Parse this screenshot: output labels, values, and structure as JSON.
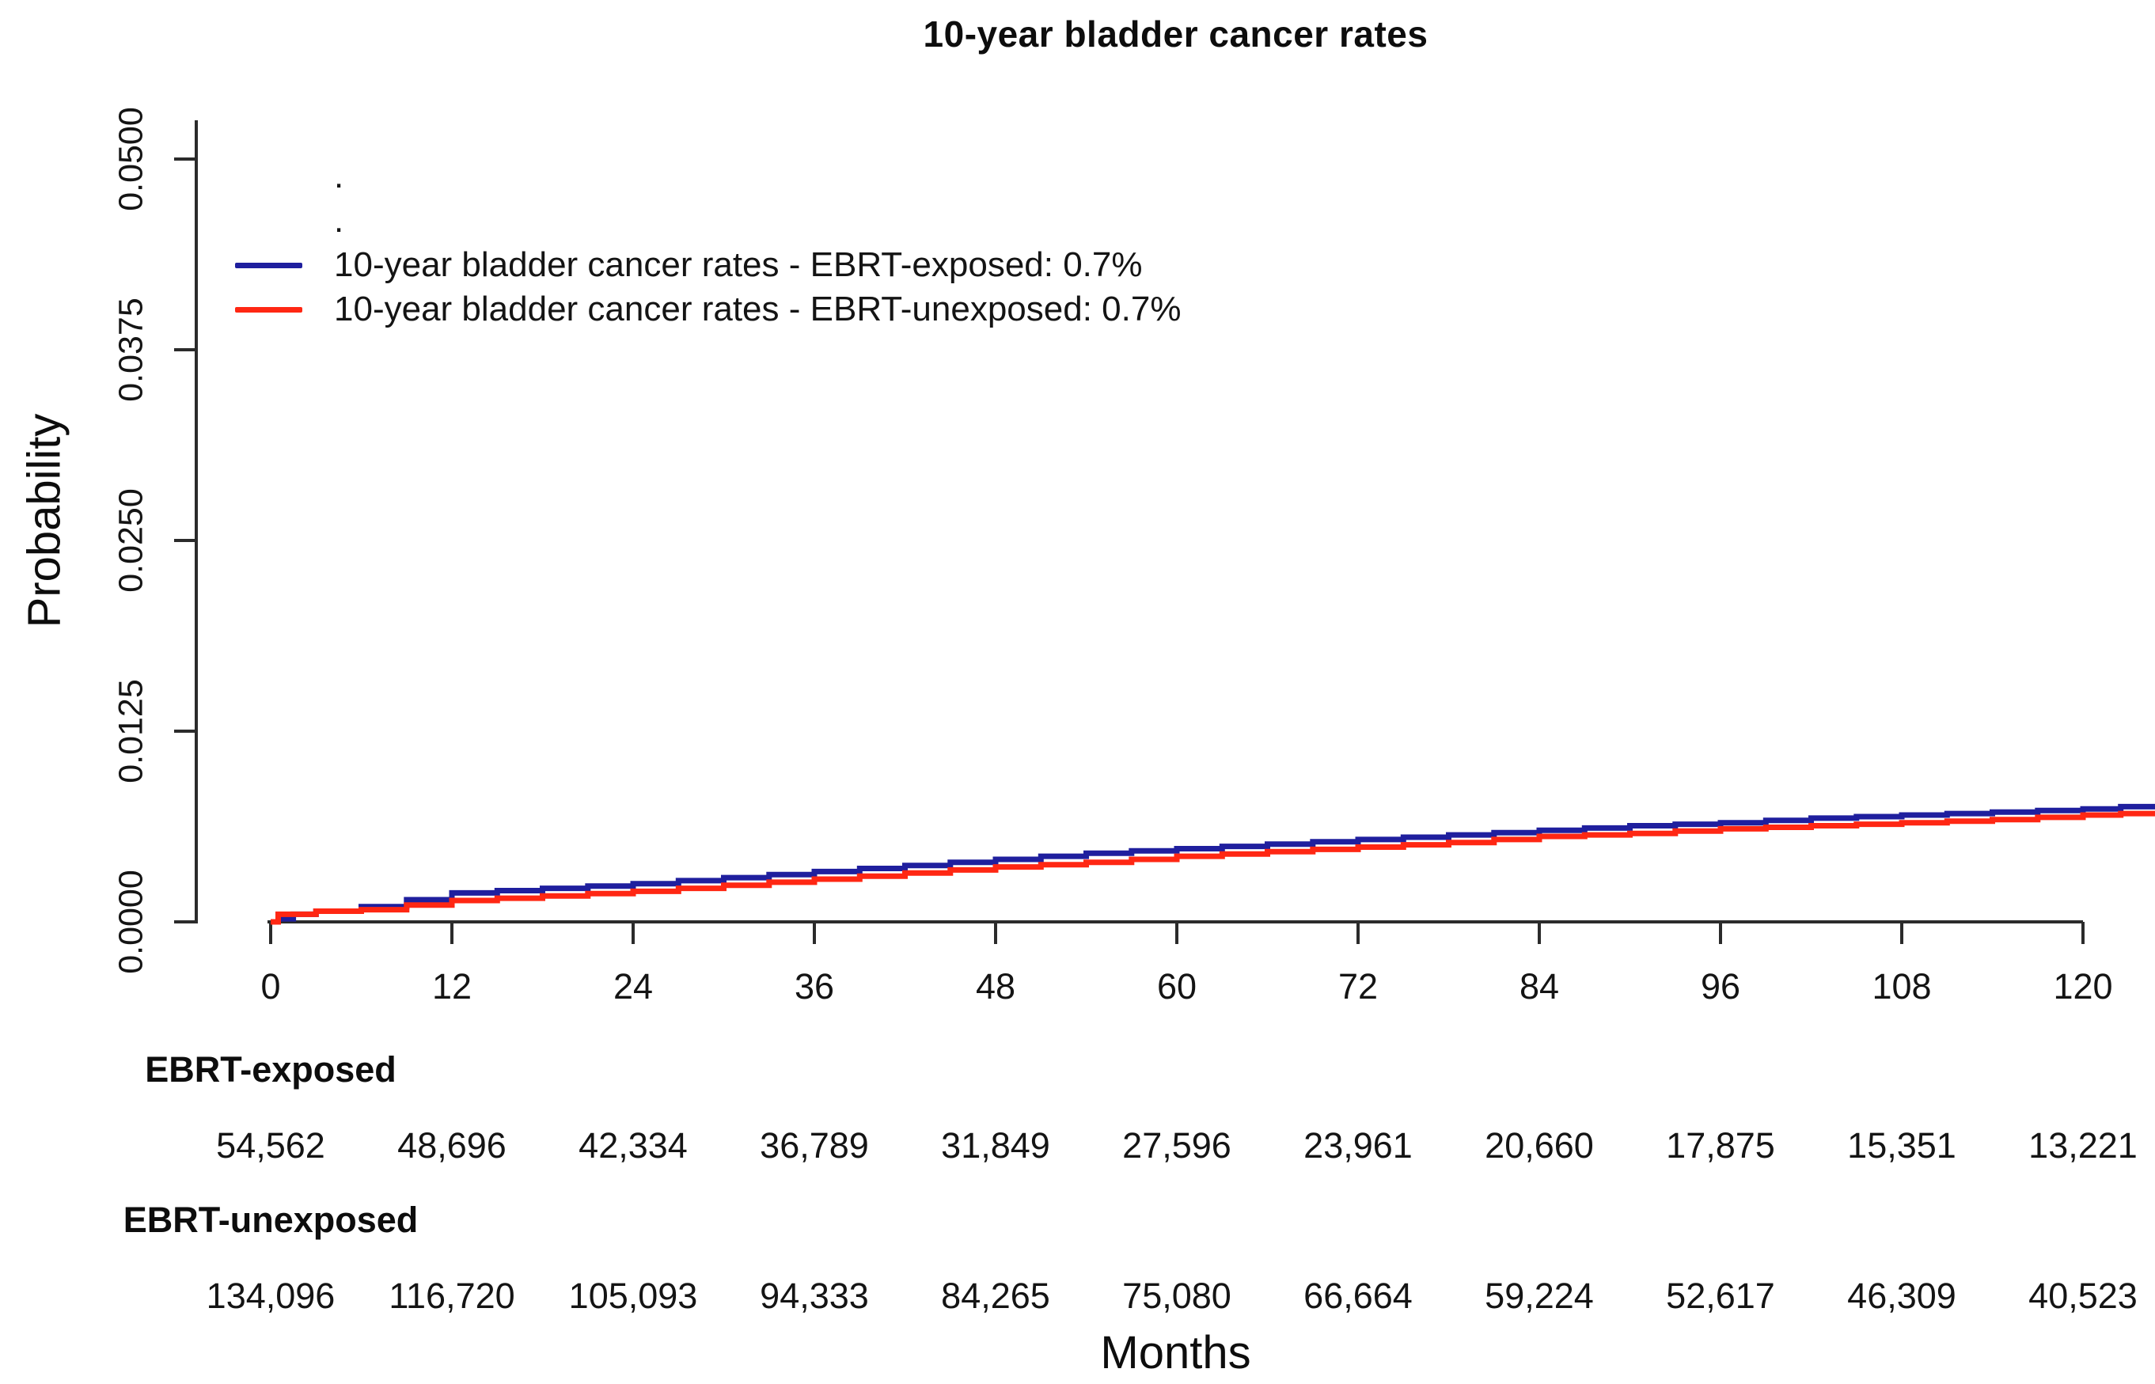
{
  "title": "10-year bladder cancer rates",
  "axes": {
    "y_label": "Probability",
    "x_label": "Months",
    "y_tick_labels": [
      "0.0000",
      "0.0125",
      "0.0250",
      "0.0375",
      "0.0500"
    ],
    "x_tick_labels": [
      "0",
      "12",
      "24",
      "36",
      "48",
      "60",
      "72",
      "84",
      "96",
      "108",
      "120"
    ]
  },
  "legend": {
    "entries": [
      {
        "label": ".",
        "color": null
      },
      {
        "label": ".",
        "color": null
      },
      {
        "label": "10-year bladder cancer rates - EBRT-exposed: 0.7%",
        "color": "#1f1f9e"
      },
      {
        "label": "10-year bladder cancer rates - EBRT-unexposed: 0.7%",
        "color": "#ff2713"
      }
    ]
  },
  "risk_table": {
    "rows": [
      {
        "label": "EBRT-exposed",
        "values": [
          "54,562",
          "48,696",
          "42,334",
          "36,789",
          "31,849",
          "27,596",
          "23,961",
          "20,660",
          "17,875",
          "15,351",
          "13,221"
        ]
      },
      {
        "label": "EBRT-unexposed",
        "values": [
          "134,096",
          "116,720",
          "105,093",
          "94,333",
          "84,265",
          "75,080",
          "66,664",
          "59,224",
          "52,617",
          "46,309",
          "40,523"
        ]
      }
    ]
  },
  "chart_data": {
    "type": "line",
    "title": "10-year bladder cancer rates",
    "xlabel": "Months",
    "ylabel": "Probability",
    "xlim": [
      0,
      125
    ],
    "ylim": [
      0,
      0.05
    ],
    "x_tick_values": [
      0,
      12,
      24,
      36,
      48,
      60,
      72,
      84,
      96,
      108,
      120
    ],
    "y_tick_values": [
      0,
      0.0125,
      0.025,
      0.0375,
      0.05
    ],
    "grid": false,
    "curve_style": "step-after",
    "legend_position": "top-left",
    "series": [
      {
        "name": "10-year bladder cancer rates - EBRT-exposed",
        "ten_year_rate": "0.7%",
        "color": "#1f1f9e",
        "points": [
          [
            0,
            0
          ],
          [
            0.5,
            0.0002
          ],
          [
            1.5,
            0.0005
          ],
          [
            3,
            0.0007
          ],
          [
            6,
            0.001
          ],
          [
            12,
            0.0019
          ],
          [
            18,
            0.0022
          ],
          [
            24,
            0.0025
          ],
          [
            30,
            0.0029
          ],
          [
            36,
            0.0033
          ],
          [
            42,
            0.0037
          ],
          [
            48,
            0.0041
          ],
          [
            54,
            0.0045
          ],
          [
            60,
            0.0048
          ],
          [
            66,
            0.0051
          ],
          [
            72,
            0.0054
          ],
          [
            78,
            0.0057
          ],
          [
            84,
            0.006
          ],
          [
            90,
            0.0063
          ],
          [
            96,
            0.0065
          ],
          [
            102,
            0.0068
          ],
          [
            108,
            0.007
          ],
          [
            114,
            0.0072
          ],
          [
            120,
            0.0074
          ],
          [
            125,
            0.0077
          ]
        ]
      },
      {
        "name": "10-year bladder cancer rates - EBRT-unexposed",
        "ten_year_rate": "0.7%",
        "color": "#ff2713",
        "points": [
          [
            0,
            0
          ],
          [
            0.5,
            0.0005
          ],
          [
            3,
            0.0007
          ],
          [
            6,
            0.0008
          ],
          [
            12,
            0.0014
          ],
          [
            18,
            0.0017
          ],
          [
            24,
            0.002
          ],
          [
            30,
            0.0024
          ],
          [
            36,
            0.0028
          ],
          [
            42,
            0.0032
          ],
          [
            48,
            0.0036
          ],
          [
            54,
            0.0039
          ],
          [
            60,
            0.0043
          ],
          [
            66,
            0.0046
          ],
          [
            72,
            0.0049
          ],
          [
            78,
            0.0052
          ],
          [
            84,
            0.0056
          ],
          [
            90,
            0.0058
          ],
          [
            96,
            0.0061
          ],
          [
            102,
            0.0063
          ],
          [
            108,
            0.0065
          ],
          [
            114,
            0.0067
          ],
          [
            120,
            0.007
          ],
          [
            125,
            0.0072
          ]
        ]
      }
    ]
  }
}
